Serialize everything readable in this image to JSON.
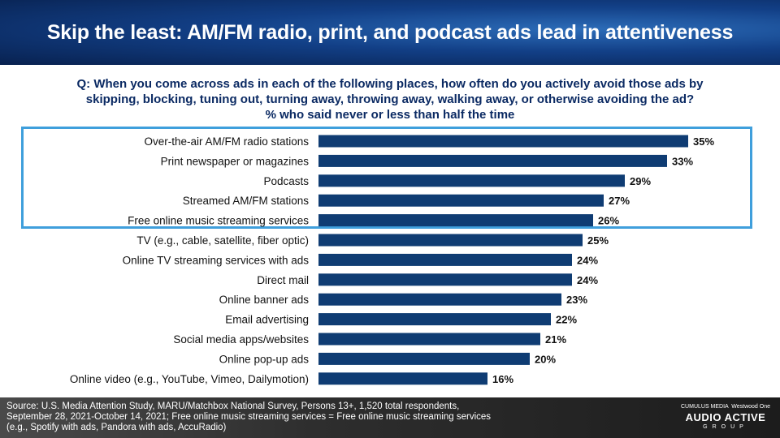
{
  "title": "Skip the least: AM/FM radio, print, and podcast ads lead in attentiveness",
  "question": {
    "line1": "Q: When you come across  ads in each of the following places, how often  do you actively avoid those  ads by",
    "line2": "skipping, blocking, tuning out, turning away, throwing away, walking away, or otherwise avoiding the ad?",
    "line3": "% who said never or less  than half the time"
  },
  "chart_data": {
    "type": "bar",
    "orientation": "horizontal",
    "categories": [
      "Over-the-air AM/FM radio stations",
      "Print newspaper or magazines",
      "Podcasts",
      "Streamed AM/FM stations",
      "Free online music streaming services",
      "TV (e.g., cable, satellite, fiber optic)",
      "Online TV streaming services with ads",
      "Direct mail",
      "Online banner ads",
      "Email advertising",
      "Social media apps/websites",
      "Online pop-up ads",
      "Online video (e.g., YouTube, Vimeo, Dailymotion)"
    ],
    "values": [
      35,
      33,
      29,
      27,
      26,
      25,
      24,
      24,
      23,
      22,
      21,
      20,
      16
    ],
    "value_labels": [
      "35%",
      "33%",
      "29%",
      "27%",
      "26%",
      "25%",
      "24%",
      "24%",
      "23%",
      "22%",
      "21%",
      "20%",
      "16%"
    ],
    "highlighted_top_n": 5,
    "bar_color": "#0f3c73",
    "highlight_color": "#3f9fdc",
    "grid": false,
    "legend": "none"
  },
  "footer": {
    "source_line1": "Source: U.S. Media Attention Study, MARU/Matchbox National Survey, Persons 13+, 1,520 total respondents,",
    "source_line2": "September 28, 2021-October 14, 2021; Free online music streaming services = Free online music streaming services",
    "source_line3": "(e.g., Spotify with ads, Pandora with ads, AccuRadio)",
    "brand_left": "CUMULUS MEDIA",
    "brand_right": "Westwood One",
    "brand_main": "AUDIO ACTIVE",
    "brand_sub": "GROUP"
  }
}
